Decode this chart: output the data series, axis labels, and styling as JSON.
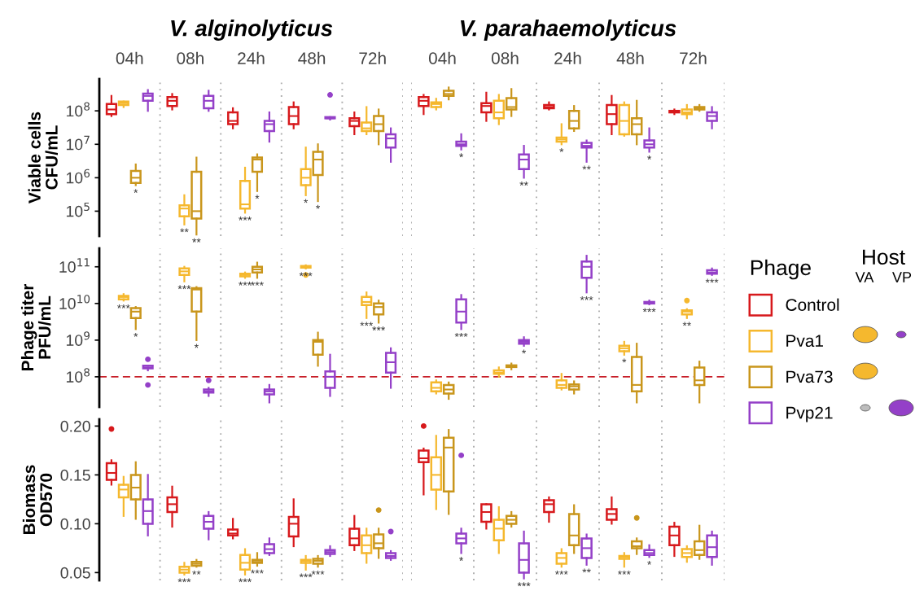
{
  "chart_data": [
    {
      "type": "box",
      "title": "V. alginolyticus",
      "ylabel": "Viable cells\nCFU/mL",
      "categories": [
        "04h",
        "08h",
        "24h",
        "48h",
        "72h"
      ],
      "log": true,
      "ylim": [
        18000.0,
        900000000.0
      ],
      "yticks": [
        {
          "value": 100000.0,
          "label": "10$^{5}$"
        },
        {
          "value": 1000000.0,
          "label": "10$^{6}$"
        },
        {
          "value": 10000000.0,
          "label": "10$^{7}$"
        },
        {
          "value": 100000000.0,
          "label": "10$^{8}$"
        }
      ],
      "legend_title": "Phage",
      "legend": "right",
      "series": [
        {
          "name": "Control",
          "color": "#d7191c",
          "boxes": [
            {
              "low": 70000000.0,
              "q1": 80000000.0,
              "median": 110000000.0,
              "q3": 160000000.0,
              "high": 280000000.0
            },
            {
              "low": 110000000.0,
              "q1": 140000000.0,
              "median": 200000000.0,
              "q3": 260000000.0,
              "high": 320000000.0
            },
            {
              "low": 30000000.0,
              "q1": 40000000.0,
              "median": 50000000.0,
              "q3": 90000000.0,
              "high": 120000000.0
            },
            {
              "low": 30000000.0,
              "q1": 40000000.0,
              "median": 70000000.0,
              "q3": 130000000.0,
              "high": 180000000.0
            },
            {
              "low": 20000000.0,
              "q1": 35000000.0,
              "median": 50000000.0,
              "q3": 60000000.0,
              "high": 90000000.0
            }
          ],
          "value_labels": [
            null,
            null,
            null,
            null,
            null
          ]
        },
        {
          "name": "Pva1",
          "color": "#f5b82e",
          "boxes": [
            {
              "low": 130000000.0,
              "q1": 150000000.0,
              "median": 170000000.0,
              "q3": 190000000.0,
              "high": 190000000.0
            },
            {
              "low": 40000.0,
              "q1": 70000.0,
              "median": 120000.0,
              "q3": 150000.0,
              "high": 300000.0
            },
            {
              "low": 90000.0,
              "q1": 120000.0,
              "median": 160000.0,
              "q3": 800000.0,
              "high": 2000000.0
            },
            {
              "low": 300000.0,
              "q1": 600000.0,
              "median": 1000000.0,
              "q3": 1800000.0,
              "high": 8000000.0
            },
            {
              "low": 20000000.0,
              "q1": 25000000.0,
              "median": 30000000.0,
              "q3": 45000000.0,
              "high": 130000000.0
            }
          ],
          "value_labels": [
            null,
            "**",
            "***",
            "*",
            null
          ]
        },
        {
          "name": "Pva73",
          "color": "#c9961c",
          "boxes": [
            {
              "low": 600000.0,
              "q1": 700000.0,
              "median": 1000000.0,
              "q3": 1600000.0,
              "high": 2500000.0
            },
            {
              "low": 20000.0,
              "q1": 60000.0,
              "median": 100000.0,
              "q3": 1500000.0,
              "high": 4000000.0
            },
            {
              "low": 400000.0,
              "q1": 1500000.0,
              "median": 3500000.0,
              "q3": 4000000.0,
              "high": 5000000.0
            },
            {
              "low": 200000.0,
              "q1": 1200000.0,
              "median": 3500000.0,
              "q3": 6000000.0,
              "high": 10000000.0
            },
            {
              "low": 10000000.0,
              "q1": 25000000.0,
              "median": 40000000.0,
              "q3": 70000000.0,
              "high": 110000000.0
            }
          ],
          "value_labels": [
            "*",
            "**",
            "*",
            "*",
            null
          ]
        },
        {
          "name": "Pvp21",
          "color": "#9440c8",
          "boxes": [
            {
              "low": 100000000.0,
              "q1": 200000000.0,
              "median": 280000000.0,
              "q3": 330000000.0,
              "high": 420000000.0
            },
            {
              "low": 100000000.0,
              "q1": 120000000.0,
              "median": 200000000.0,
              "q3": 280000000.0,
              "high": 400000000.0
            },
            {
              "low": 12000000.0,
              "q1": 25000000.0,
              "median": 40000000.0,
              "q3": 50000000.0,
              "high": 90000000.0
            },
            {
              "low": 55000000.0,
              "q1": 60000000.0,
              "median": 60000000.0,
              "q3": 65000000.0,
              "high": 65000000.0,
              "outliers": [
                300000000.0
              ]
            },
            {
              "low": 3000000.0,
              "q1": 8000000.0,
              "median": 15000000.0,
              "q3": 20000000.0,
              "high": 30000000.0
            }
          ],
          "value_labels": [
            null,
            null,
            null,
            null,
            null
          ]
        }
      ]
    },
    {
      "type": "box",
      "title": "V. parahaemolyticus",
      "categories": [
        "04h",
        "08h",
        "24h",
        "48h",
        "72h"
      ],
      "log": true,
      "ylim": [
        18000.0,
        900000000.0
      ],
      "tick_labels": "x",
      "series": [
        {
          "color": "#d7191c",
          "boxes": [
            {
              "low": 80000000.0,
              "q1": 140000000.0,
              "median": 200000000.0,
              "q3": 260000000.0,
              "high": 300000000.0
            },
            {
              "low": 50000000.0,
              "q1": 90000000.0,
              "median": 140000000.0,
              "q3": 170000000.0,
              "high": 350000000.0
            },
            {
              "low": 110000000.0,
              "q1": 120000000.0,
              "median": 130000000.0,
              "q3": 150000000.0,
              "high": 180000000.0
            },
            {
              "low": 20000000.0,
              "q1": 40000000.0,
              "median": 80000000.0,
              "q3": 150000000.0,
              "high": 280000000.0
            },
            {
              "low": 80000000.0,
              "q1": 90000000.0,
              "median": 95000000.0,
              "q3": 100000000.0,
              "high": 110000000.0
            }
          ],
          "value_labels": [
            null,
            null,
            null,
            null,
            null
          ]
        },
        {
          "color": "#f5b82e",
          "boxes": [
            {
              "low": 110000000.0,
              "q1": 130000000.0,
              "median": 160000000.0,
              "q3": 180000000.0,
              "high": 230000000.0
            },
            {
              "low": 40000000.0,
              "q1": 60000000.0,
              "median": 90000000.0,
              "q3": 200000000.0,
              "high": 300000000.0
            },
            {
              "low": 10000000.0,
              "q1": 12000000.0,
              "median": 14000000.0,
              "q3": 16000000.0,
              "high": 40000000.0
            },
            {
              "low": 18000000.0,
              "q1": 20000000.0,
              "median": 50000000.0,
              "q3": 150000000.0,
              "high": 180000000.0
            },
            {
              "low": 60000000.0,
              "q1": 80000000.0,
              "median": 90000000.0,
              "q3": 110000000.0,
              "high": 150000000.0
            }
          ],
          "value_labels": [
            null,
            null,
            "*",
            null,
            null
          ]
        },
        {
          "color": "#c9961c",
          "boxes": [
            {
              "low": 220000000.0,
              "q1": 280000000.0,
              "median": 320000000.0,
              "q3": 400000000.0,
              "high": 500000000.0
            },
            {
              "low": 70000000.0,
              "q1": 110000000.0,
              "median": 130000000.0,
              "q3": 240000000.0,
              "high": 450000000.0
            },
            {
              "low": 25000000.0,
              "q1": 30000000.0,
              "median": 50000000.0,
              "q3": 100000000.0,
              "high": 140000000.0
            },
            {
              "low": 10000000.0,
              "q1": 20000000.0,
              "median": 40000000.0,
              "q3": 60000000.0,
              "high": 200000000.0
            },
            {
              "low": 100000000.0,
              "q1": 110000000.0,
              "median": 120000000.0,
              "q3": 130000000.0,
              "high": 150000000.0
            }
          ],
          "value_labels": [
            null,
            null,
            null,
            null,
            null
          ]
        },
        {
          "color": "#9440c8",
          "boxes": [
            {
              "low": 7000000.0,
              "q1": 9000000.0,
              "median": 10000000.0,
              "q3": 12000000.0,
              "high": 20000000.0
            },
            {
              "low": 1000000.0,
              "q1": 1800000.0,
              "median": 3500000.0,
              "q3": 5000000.0,
              "high": 9000000.0
            },
            {
              "low": 3000000.0,
              "q1": 8000000.0,
              "median": 9000000.0,
              "q3": 11000000.0,
              "high": 13000000.0
            },
            {
              "low": 6000000.0,
              "q1": 8000000.0,
              "median": 10000000.0,
              "q3": 13000000.0,
              "high": 30000000.0
            },
            {
              "low": 30000000.0,
              "q1": 50000000.0,
              "median": 70000000.0,
              "q3": 90000000.0,
              "high": 130000000.0
            }
          ],
          "value_labels": [
            "*",
            "**",
            "**",
            "*",
            null
          ]
        }
      ]
    },
    {
      "type": "box",
      "ylabel": "Phage titer\nPFU/mL",
      "categories": [
        null,
        null,
        null,
        null,
        null
      ],
      "log": true,
      "ylim": [
        15000000.0,
        320000000000.0
      ],
      "yticks": [
        {
          "value": 100000000.0,
          "label": "10$^{8}$"
        },
        {
          "value": 1000000000.0,
          "label": "10$^{9}$"
        },
        {
          "value": 10000000000.0,
          "label": "10$^{10}$"
        },
        {
          "value": 100000000000.0,
          "label": "10$^{11}$"
        }
      ],
      "tick_labels": "y",
      "ref_lines": [
        {
          "axis": "y",
          "value": 100000000.0,
          "color": "#c8202a",
          "line_style": "dashed"
        }
      ],
      "series": [
        {
          "color": "#d7191c",
          "boxes": [
            null,
            null,
            null,
            null,
            null
          ],
          "value_labels": [
            null,
            null,
            null,
            null,
            null
          ]
        },
        {
          "color": "#f5b82e",
          "boxes": [
            {
              "low": 12000000000.0,
              "q1": 13000000000.0,
              "median": 15000000000.0,
              "q3": 16000000000.0,
              "high": 18000000000.0
            },
            {
              "low": 40000000000.0,
              "q1": 60000000000.0,
              "median": 75000000000.0,
              "q3": 90000000000.0,
              "high": 100000000000.0
            },
            {
              "low": 50000000000.0,
              "q1": 55000000000.0,
              "median": 60000000000.0,
              "q3": 65000000000.0,
              "high": 70000000000.0
            },
            {
              "low": 90000000000.0,
              "q1": 95000000000.0,
              "median": 100000000000.0,
              "q3": 105000000000.0,
              "high": 110000000000.0,
              "outliers": [
                60000000000.0
              ]
            },
            {
              "low": 4000000000.0,
              "q1": 9000000000.0,
              "median": 11000000000.0,
              "q3": 15000000000.0,
              "high": 20000000000.0
            }
          ],
          "value_labels": [
            "***",
            "***",
            "***",
            "***",
            "***"
          ]
        },
        {
          "color": "#c9961c",
          "boxes": [
            {
              "low": 2000000000.0,
              "q1": 4000000000.0,
              "median": 6000000000.0,
              "q3": 7500000000.0,
              "high": 8000000000.0
            },
            {
              "low": 1000000000.0,
              "q1": 6000000000.0,
              "median": 24000000000.0,
              "q3": 26000000000.0,
              "high": 28000000000.0
            },
            {
              "low": 50000000000.0,
              "q1": 70000000000.0,
              "median": 85000000000.0,
              "q3": 100000000000.0,
              "high": 130000000000.0
            },
            {
              "low": 200000000.0,
              "q1": 400000000.0,
              "median": 900000000.0,
              "q3": 1000000000.0,
              "high": 1600000000.0
            },
            {
              "low": 3000000000.0,
              "q1": 5000000000.0,
              "median": 8000000000.0,
              "q3": 10000000000.0,
              "high": 12000000000.0
            }
          ],
          "value_labels": [
            "*",
            "*",
            "***",
            null,
            "***"
          ]
        },
        {
          "color": "#9440c8",
          "boxes": [
            {
              "low": 150000000.0,
              "q1": 170000000.0,
              "median": 180000000.0,
              "q3": 200000000.0,
              "high": 200000000.0,
              "outliers": [
                60000000.0,
                300000000.0
              ]
            },
            {
              "low": 30000000.0,
              "q1": 37000000.0,
              "median": 40000000.0,
              "q3": 45000000.0,
              "high": 50000000.0,
              "outliers": [
                80000000.0
              ]
            },
            {
              "low": 20000000.0,
              "q1": 33000000.0,
              "median": 40000000.0,
              "q3": 45000000.0,
              "high": 60000000.0
            },
            {
              "low": 30000000.0,
              "q1": 50000000.0,
              "median": 100000000.0,
              "q3": 140000000.0,
              "high": 400000000.0
            },
            {
              "low": 50000000.0,
              "q1": 130000000.0,
              "median": 250000000.0,
              "q3": 450000000.0,
              "high": 600000000.0
            }
          ],
          "value_labels": [
            null,
            null,
            null,
            null,
            null
          ]
        }
      ]
    },
    {
      "type": "box",
      "categories": [
        null,
        null,
        null,
        null,
        null
      ],
      "log": true,
      "ylim": [
        15000000.0,
        320000000000.0
      ],
      "tick_labels": false,
      "ref_lines": [
        {
          "axis": "y",
          "value": 100000000.0,
          "color": "#c8202a",
          "line_style": "dashed"
        }
      ],
      "annotations": [
        "Host",
        "VA",
        "VP"
      ],
      "series": [
        {
          "color": "#d7191c",
          "boxes": [
            null,
            null,
            null,
            null,
            null
          ],
          "value_labels": [
            null,
            null,
            null,
            null,
            null
          ]
        },
        {
          "color": "#f5b82e",
          "boxes": [
            {
              "low": 35000000.0,
              "q1": 40000000.0,
              "median": 50000000.0,
              "q3": 70000000.0,
              "high": 80000000.0
            },
            {
              "low": 100000000.0,
              "q1": 120000000.0,
              "median": 130000000.0,
              "q3": 150000000.0,
              "high": 180000000.0
            },
            {
              "low": 45000000.0,
              "q1": 50000000.0,
              "median": 60000000.0,
              "q3": 80000000.0,
              "high": 120000000.0
            },
            {
              "low": 400000000.0,
              "q1": 500000000.0,
              "median": 600000000.0,
              "q3": 700000000.0,
              "high": 900000000.0
            },
            {
              "low": 4000000000.0,
              "q1": 5000000000.0,
              "median": 6000000000.0,
              "q3": 6500000000.0,
              "high": 7000000000.0,
              "outliers": [
                12000000000.0
              ]
            }
          ],
          "value_labels": [
            null,
            null,
            null,
            "*",
            "**"
          ]
        },
        {
          "color": "#c9961c",
          "boxes": [
            {
              "low": 25000000.0,
              "q1": 35000000.0,
              "median": 45000000.0,
              "q3": 60000000.0,
              "high": 70000000.0
            },
            {
              "low": 160000000.0,
              "q1": 185000000.0,
              "median": 200000000.0,
              "q3": 205000000.0,
              "high": 230000000.0
            },
            {
              "low": 35000000.0,
              "q1": 45000000.0,
              "median": 55000000.0,
              "q3": 62000000.0,
              "high": 75000000.0
            },
            {
              "low": 20000000.0,
              "q1": 40000000.0,
              "median": 60000000.0,
              "q3": 350000000.0,
              "high": 800000000.0
            },
            {
              "low": 20000000.0,
              "q1": 60000000.0,
              "median": 80000000.0,
              "q3": 180000000.0,
              "high": 260000000.0
            }
          ],
          "value_labels": [
            null,
            null,
            null,
            null,
            null
          ]
        },
        {
          "color": "#9440c8",
          "boxes": [
            {
              "low": 2000000000.0,
              "q1": 3000000000.0,
              "median": 6000000000.0,
              "q3": 13000000000.0,
              "high": 17000000000.0
            },
            {
              "low": 700000000.0,
              "q1": 800000000.0,
              "median": 900000000.0,
              "q3": 1000000000.0,
              "high": 1200000000.0
            },
            {
              "low": 20000000000.0,
              "q1": 50000000000.0,
              "median": 100000000000.0,
              "q3": 140000000000.0,
              "high": 200000000000.0
            },
            {
              "low": 9500000000.0,
              "q1": 10000000000.0,
              "median": 10000000000.0,
              "q3": 11000000000.0,
              "high": 12000000000.0
            },
            {
              "low": 60000000000.0,
              "q1": 65000000000.0,
              "median": 70000000000.0,
              "q3": 80000000000.0,
              "high": 90000000000.0
            }
          ],
          "value_labels": [
            "***",
            "*",
            "***",
            "***",
            "***"
          ]
        }
      ]
    },
    {
      "type": "box",
      "ylabel": "Biomass\nOD570",
      "categories": [
        null,
        null,
        null,
        null,
        null
      ],
      "ylim": [
        0.042,
        0.207
      ],
      "yticks": [
        {
          "value": 0.05,
          "label": "0.05"
        },
        {
          "value": 0.1,
          "label": "0.10"
        },
        {
          "value": 0.15,
          "label": "0.15"
        },
        {
          "value": 0.2,
          "label": "0.20"
        }
      ],
      "tick_labels": "y",
      "series": [
        {
          "color": "#d7191c",
          "boxes": [
            {
              "low": 0.14,
              "q1": 0.145,
              "median": 0.152,
              "q3": 0.162,
              "high": 0.165,
              "outliers": [
                0.197
              ]
            },
            {
              "low": 0.097,
              "q1": 0.112,
              "median": 0.12,
              "q3": 0.127,
              "high": 0.138
            },
            {
              "low": 0.085,
              "q1": 0.088,
              "median": 0.09,
              "q3": 0.094,
              "high": 0.105
            },
            {
              "low": 0.077,
              "q1": 0.087,
              "median": 0.1,
              "q3": 0.107,
              "high": 0.125
            },
            {
              "low": 0.073,
              "q1": 0.078,
              "median": 0.085,
              "q3": 0.095,
              "high": 0.108
            }
          ],
          "value_labels": [
            null,
            null,
            null,
            null,
            null
          ]
        },
        {
          "color": "#f5b82e",
          "boxes": [
            {
              "low": 0.108,
              "q1": 0.127,
              "median": 0.135,
              "q3": 0.14,
              "high": 0.148
            },
            {
              "low": 0.048,
              "q1": 0.05,
              "median": 0.053,
              "q3": 0.056,
              "high": 0.06
            },
            {
              "low": 0.048,
              "q1": 0.053,
              "median": 0.06,
              "q3": 0.068,
              "high": 0.074
            },
            {
              "low": 0.053,
              "q1": 0.06,
              "median": 0.062,
              "q3": 0.063,
              "high": 0.067
            },
            {
              "low": 0.06,
              "q1": 0.07,
              "median": 0.078,
              "q3": 0.088,
              "high": 0.095
            }
          ],
          "value_labels": [
            null,
            "***",
            "***",
            "***",
            null
          ]
        },
        {
          "color": "#c9961c",
          "boxes": [
            {
              "low": 0.105,
              "q1": 0.125,
              "median": 0.137,
              "q3": 0.15,
              "high": 0.163
            },
            {
              "low": 0.056,
              "q1": 0.057,
              "median": 0.059,
              "q3": 0.061,
              "high": 0.063
            },
            {
              "low": 0.057,
              "q1": 0.06,
              "median": 0.061,
              "q3": 0.063,
              "high": 0.07
            },
            {
              "low": 0.056,
              "q1": 0.059,
              "median": 0.062,
              "q3": 0.064,
              "high": 0.067
            },
            {
              "low": 0.065,
              "q1": 0.075,
              "median": 0.08,
              "q3": 0.089,
              "high": 0.095,
              "outliers": [
                0.114
              ]
            }
          ],
          "value_labels": [
            null,
            "**",
            "***",
            "***",
            null
          ]
        },
        {
          "color": "#9440c8",
          "boxes": [
            {
              "low": 0.088,
              "q1": 0.1,
              "median": 0.113,
              "q3": 0.125,
              "high": 0.15
            },
            {
              "low": 0.084,
              "q1": 0.095,
              "median": 0.102,
              "q3": 0.108,
              "high": 0.112
            },
            {
              "low": 0.068,
              "q1": 0.07,
              "median": 0.074,
              "q3": 0.079,
              "high": 0.085
            },
            {
              "low": 0.067,
              "q1": 0.069,
              "median": 0.071,
              "q3": 0.073,
              "high": 0.077
            },
            {
              "low": 0.063,
              "q1": 0.065,
              "median": 0.067,
              "q3": 0.07,
              "high": 0.072,
              "outliers": [
                0.092
              ]
            }
          ],
          "value_labels": [
            null,
            null,
            null,
            null,
            null
          ]
        }
      ]
    },
    {
      "type": "box",
      "categories": [
        null,
        null,
        null,
        null,
        null
      ],
      "ylim": [
        0.042,
        0.207
      ],
      "tick_labels": false,
      "series": [
        {
          "color": "#d7191c",
          "boxes": [
            {
              "low": 0.13,
              "q1": 0.163,
              "median": 0.167,
              "q3": 0.175,
              "high": 0.177,
              "outliers": [
                0.2
              ]
            },
            {
              "low": 0.095,
              "q1": 0.102,
              "median": 0.112,
              "q3": 0.12,
              "high": 0.12
            },
            {
              "low": 0.102,
              "q1": 0.112,
              "median": 0.12,
              "q3": 0.124,
              "high": 0.127
            },
            {
              "low": 0.1,
              "q1": 0.104,
              "median": 0.11,
              "q3": 0.115,
              "high": 0.127
            },
            {
              "low": 0.067,
              "q1": 0.078,
              "median": 0.088,
              "q3": 0.097,
              "high": 0.101
            }
          ],
          "value_labels": [
            null,
            null,
            null,
            null,
            null
          ]
        },
        {
          "color": "#f5b82e",
          "boxes": [
            {
              "low": 0.115,
              "q1": 0.135,
              "median": 0.15,
              "q3": 0.168,
              "high": 0.19
            },
            {
              "low": 0.07,
              "q1": 0.083,
              "median": 0.095,
              "q3": 0.104,
              "high": 0.117
            },
            {
              "low": 0.056,
              "q1": 0.059,
              "median": 0.065,
              "q3": 0.07,
              "high": 0.074
            },
            {
              "low": 0.056,
              "q1": 0.064,
              "median": 0.066,
              "q3": 0.067,
              "high": 0.07
            },
            {
              "low": 0.061,
              "q1": 0.066,
              "median": 0.07,
              "q3": 0.074,
              "high": 0.077
            }
          ],
          "value_labels": [
            null,
            null,
            "***",
            "***",
            null
          ]
        },
        {
          "color": "#c9961c",
          "boxes": [
            {
              "low": 0.11,
              "q1": 0.133,
              "median": 0.178,
              "q3": 0.188,
              "high": 0.196
            },
            {
              "low": 0.097,
              "q1": 0.1,
              "median": 0.104,
              "q3": 0.108,
              "high": 0.112
            },
            {
              "low": 0.07,
              "q1": 0.078,
              "median": 0.088,
              "q3": 0.11,
              "high": 0.119
            },
            {
              "low": 0.069,
              "q1": 0.075,
              "median": 0.077,
              "q3": 0.082,
              "high": 0.085,
              "outliers": [
                0.106
              ]
            },
            {
              "low": 0.064,
              "q1": 0.068,
              "median": 0.073,
              "q3": 0.082,
              "high": 0.098
            }
          ],
          "value_labels": [
            null,
            null,
            null,
            null,
            null
          ]
        },
        {
          "color": "#9440c8",
          "boxes": [
            {
              "low": 0.07,
              "q1": 0.08,
              "median": 0.085,
              "q3": 0.09,
              "high": 0.095,
              "outliers": [
                0.17
              ]
            },
            {
              "low": 0.044,
              "q1": 0.05,
              "median": 0.063,
              "q3": 0.08,
              "high": 0.092
            },
            {
              "low": 0.058,
              "q1": 0.065,
              "median": 0.075,
              "q3": 0.085,
              "high": 0.089
            },
            {
              "low": 0.066,
              "q1": 0.068,
              "median": 0.07,
              "q3": 0.073,
              "high": 0.078
            },
            {
              "low": 0.058,
              "q1": 0.066,
              "median": 0.076,
              "q3": 0.088,
              "high": 0.092
            }
          ],
          "value_labels": [
            "*",
            "***",
            "**",
            "*",
            null
          ]
        }
      ]
    }
  ]
}
